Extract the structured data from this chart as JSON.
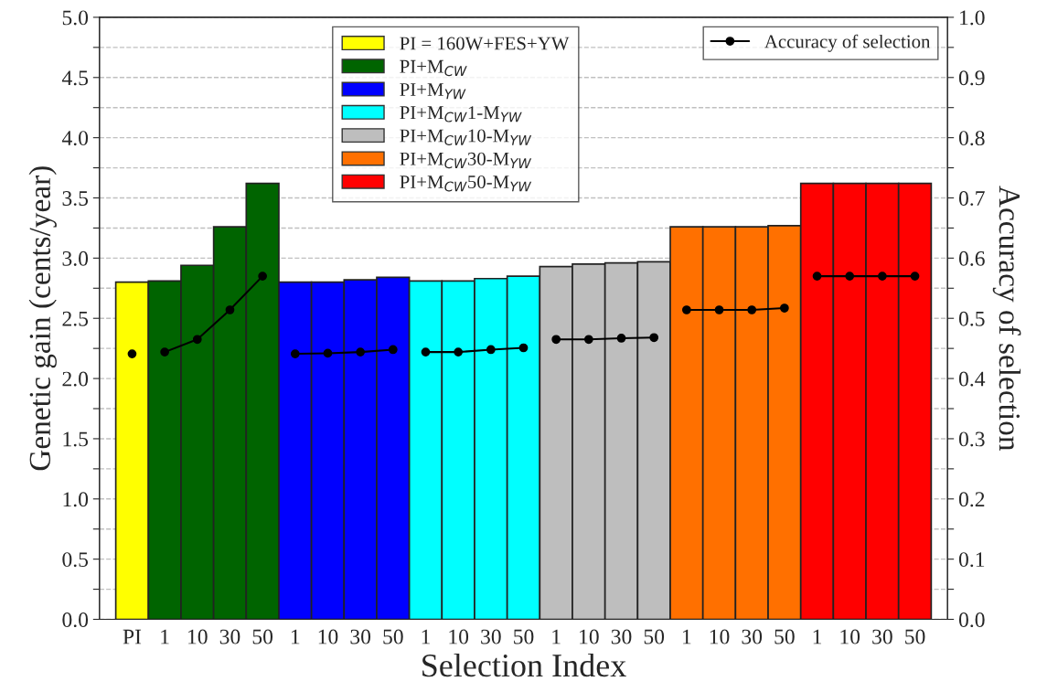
{
  "chart_data": {
    "type": "bar",
    "xlabel": "Selection Index",
    "ylabel": "Genetic gain (cents/year)",
    "y2label": "Accuracy of selection",
    "categories": [
      "PI",
      "1",
      "10",
      "30",
      "50",
      "1",
      "10",
      "30",
      "50",
      "1",
      "10",
      "30",
      "50",
      "1",
      "10",
      "30",
      "50",
      "1",
      "10",
      "30",
      "50",
      "1",
      "10",
      "30",
      "50"
    ],
    "series": [
      {
        "name": "PI = 160W+FES+YW",
        "color": "#ffff00",
        "values": [
          2.8,
          null,
          null,
          null,
          null,
          null,
          null,
          null,
          null,
          null,
          null,
          null,
          null,
          null,
          null,
          null,
          null,
          null,
          null,
          null,
          null,
          null,
          null,
          null,
          null
        ]
      },
      {
        "name": "PI+M$_{CW}$",
        "color": "#006400",
        "values": [
          null,
          2.81,
          2.94,
          3.26,
          3.62,
          null,
          null,
          null,
          null,
          null,
          null,
          null,
          null,
          null,
          null,
          null,
          null,
          null,
          null,
          null,
          null,
          null,
          null,
          null,
          null
        ]
      },
      {
        "name": "PI+M$_{YW}$",
        "color": "#0000ff",
        "values": [
          null,
          null,
          null,
          null,
          null,
          2.8,
          2.8,
          2.82,
          2.84,
          null,
          null,
          null,
          null,
          null,
          null,
          null,
          null,
          null,
          null,
          null,
          null,
          null,
          null,
          null,
          null
        ]
      },
      {
        "name": "PI+M$_{CW}$1-M$_{YW}$",
        "color": "#00ffff",
        "values": [
          null,
          null,
          null,
          null,
          null,
          null,
          null,
          null,
          null,
          2.81,
          2.81,
          2.83,
          2.85,
          null,
          null,
          null,
          null,
          null,
          null,
          null,
          null,
          null,
          null,
          null,
          null
        ]
      },
      {
        "name": "PI+M$_{CW}$10-M$_{YW}$",
        "color": "#bebebe",
        "values": [
          null,
          null,
          null,
          null,
          null,
          null,
          null,
          null,
          null,
          null,
          null,
          null,
          null,
          2.93,
          2.95,
          2.96,
          2.97,
          null,
          null,
          null,
          null,
          null,
          null,
          null,
          null
        ]
      },
      {
        "name": "PI+M$_{CW}$30-M$_{YW}$",
        "color": "#ff7000",
        "values": [
          null,
          null,
          null,
          null,
          null,
          null,
          null,
          null,
          null,
          null,
          null,
          null,
          null,
          null,
          null,
          null,
          null,
          3.26,
          3.26,
          3.26,
          3.27,
          null,
          null,
          null,
          null
        ]
      },
      {
        "name": "PI+M$_{CW}$50-M$_{YW}$",
        "color": "#ff0000",
        "values": [
          null,
          null,
          null,
          null,
          null,
          null,
          null,
          null,
          null,
          null,
          null,
          null,
          null,
          null,
          null,
          null,
          null,
          null,
          null,
          null,
          null,
          3.62,
          3.62,
          3.62,
          3.62
        ]
      },
      {
        "name": "Accuracy of selection",
        "type": "line",
        "axis": "y2",
        "color": "#000000",
        "marker": "circle",
        "values": [
          0.441,
          null,
          null,
          null,
          null,
          null,
          null,
          null,
          null,
          null,
          null,
          null,
          null,
          null,
          null,
          null,
          null,
          null,
          null,
          null,
          null,
          null,
          null,
          null,
          null
        ]
      },
      {
        "type": "line",
        "axis": "y2",
        "color": "#000000",
        "marker": "circle",
        "values": [
          null,
          0.444,
          0.465,
          0.514,
          0.57,
          null,
          null,
          null,
          null,
          null,
          null,
          null,
          null,
          null,
          null,
          null,
          null,
          null,
          null,
          null,
          null,
          null,
          null,
          null,
          null
        ]
      },
      {
        "type": "line",
        "axis": "y2",
        "color": "#000000",
        "marker": "circle",
        "values": [
          null,
          null,
          null,
          null,
          null,
          0.441,
          0.442,
          0.444,
          0.448,
          null,
          null,
          null,
          null,
          null,
          null,
          null,
          null,
          null,
          null,
          null,
          null,
          null,
          null,
          null,
          null
        ]
      },
      {
        "type": "line",
        "axis": "y2",
        "color": "#000000",
        "marker": "circle",
        "values": [
          null,
          null,
          null,
          null,
          null,
          null,
          null,
          null,
          null,
          0.444,
          0.444,
          0.448,
          0.451,
          null,
          null,
          null,
          null,
          null,
          null,
          null,
          null,
          null,
          null,
          null,
          null
        ]
      },
      {
        "type": "line",
        "axis": "y2",
        "color": "#000000",
        "marker": "circle",
        "values": [
          null,
          null,
          null,
          null,
          null,
          null,
          null,
          null,
          null,
          null,
          null,
          null,
          null,
          0.465,
          0.465,
          0.467,
          0.468,
          null,
          null,
          null,
          null,
          null,
          null,
          null,
          null
        ]
      },
      {
        "type": "line",
        "axis": "y2",
        "color": "#000000",
        "marker": "circle",
        "values": [
          null,
          null,
          null,
          null,
          null,
          null,
          null,
          null,
          null,
          null,
          null,
          null,
          null,
          null,
          null,
          null,
          null,
          0.514,
          0.514,
          0.514,
          0.517,
          null,
          null,
          null,
          null
        ]
      },
      {
        "type": "line",
        "axis": "y2",
        "color": "#000000",
        "marker": "circle",
        "values": [
          null,
          null,
          null,
          null,
          null,
          null,
          null,
          null,
          null,
          null,
          null,
          null,
          null,
          null,
          null,
          null,
          null,
          null,
          null,
          null,
          null,
          0.57,
          0.57,
          0.57,
          0.57
        ]
      }
    ],
    "ylim": [
      0,
      5
    ],
    "yticks": [
      {
        "value": 0,
        "label": "0.0"
      },
      {
        "value": 0.25,
        "label": null
      },
      {
        "value": 0.5,
        "label": "0.5"
      },
      {
        "value": 0.75,
        "label": null
      },
      {
        "value": 1,
        "label": "1.0"
      },
      {
        "value": 1.25,
        "label": null
      },
      {
        "value": 1.5,
        "label": "1.5"
      },
      {
        "value": 1.75,
        "label": null
      },
      {
        "value": 2,
        "label": "2.0"
      },
      {
        "value": 2.25,
        "label": null
      },
      {
        "value": 2.5,
        "label": "2.5"
      },
      {
        "value": 2.75,
        "label": null
      },
      {
        "value": 3,
        "label": "3.0"
      },
      {
        "value": 3.25,
        "label": null
      },
      {
        "value": 3.5,
        "label": "3.5"
      },
      {
        "value": 3.75,
        "label": null
      },
      {
        "value": 4,
        "label": "4.0"
      },
      {
        "value": 4.25,
        "label": null
      },
      {
        "value": 4.5,
        "label": "4.5"
      },
      {
        "value": 4.75,
        "label": null
      },
      {
        "value": 5,
        "label": "5.0"
      }
    ],
    "y2lim": [
      0,
      1
    ],
    "y2ticks": [
      {
        "value": 0,
        "label": "0.0"
      },
      {
        "value": 0.05,
        "label": null
      },
      {
        "value": 0.1,
        "label": "0.1"
      },
      {
        "value": 0.15,
        "label": null
      },
      {
        "value": 0.2,
        "label": "0.2"
      },
      {
        "value": 0.25,
        "label": null
      },
      {
        "value": 0.3,
        "label": "0.3"
      },
      {
        "value": 0.35,
        "label": null
      },
      {
        "value": 0.4,
        "label": "0.4"
      },
      {
        "value": 0.45,
        "label": null
      },
      {
        "value": 0.5,
        "label": "0.5"
      },
      {
        "value": 0.55,
        "label": null
      },
      {
        "value": 0.6,
        "label": "0.6"
      },
      {
        "value": 0.65,
        "label": null
      },
      {
        "value": 0.7,
        "label": "0.7"
      },
      {
        "value": 0.75,
        "label": null
      },
      {
        "value": 0.8,
        "label": "0.8"
      },
      {
        "value": 0.85,
        "label": null
      },
      {
        "value": 0.9,
        "label": "0.9"
      },
      {
        "value": 0.95,
        "label": null
      },
      {
        "value": 1,
        "label": "1.0"
      }
    ],
    "grid": "y",
    "legend": "top"
  }
}
